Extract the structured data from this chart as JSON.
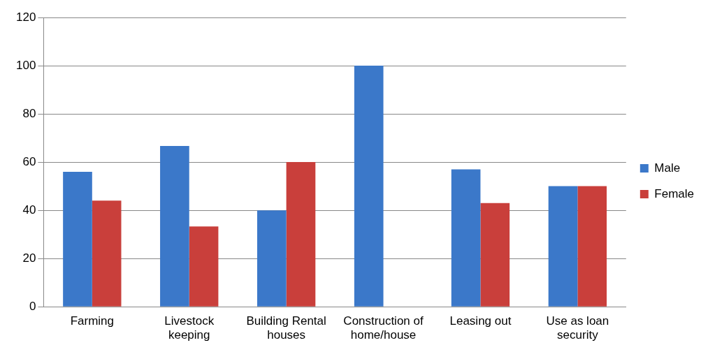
{
  "chart_data": {
    "type": "bar",
    "categories": [
      "Farming",
      "Livestock keeping",
      "Building Rental houses",
      "Construction of home/house",
      "Leasing out",
      "Use as loan security"
    ],
    "series": [
      {
        "name": "Male",
        "color": "#3b78c9",
        "values": [
          56,
          66.7,
          40,
          100,
          57,
          50
        ]
      },
      {
        "name": "Female",
        "color": "#c93f3b",
        "values": [
          44,
          33.3,
          60,
          null,
          43,
          50
        ]
      }
    ],
    "ylim": [
      0,
      120
    ],
    "yticks": [
      0,
      20,
      40,
      60,
      80,
      100,
      120
    ],
    "grid": "y",
    "legend": "right"
  }
}
